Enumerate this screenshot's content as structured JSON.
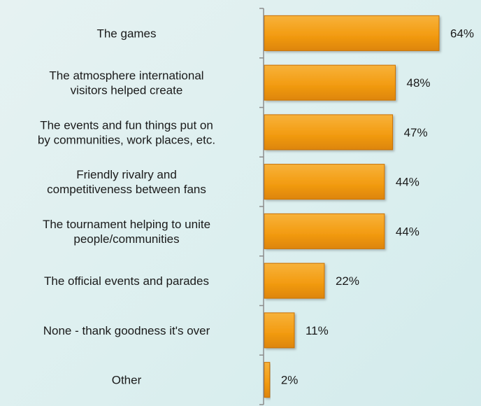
{
  "chart_data": {
    "type": "bar",
    "orientation": "horizontal",
    "title": "",
    "xlabel": "",
    "ylabel": "",
    "categories": [
      [
        "The games"
      ],
      [
        "The atmosphere international",
        "visitors helped create"
      ],
      [
        "The events and fun things put on",
        "by communities, work places, etc."
      ],
      [
        "Friendly rivalry and",
        "competitiveness between fans"
      ],
      [
        "The tournament helping to unite",
        "people/communities"
      ],
      [
        "The official events and parades"
      ],
      [
        "None - thank goodness it's over"
      ],
      [
        "Other"
      ]
    ],
    "values": [
      64,
      48,
      47,
      44,
      44,
      22,
      11,
      2
    ],
    "value_labels": [
      "64%",
      "48%",
      "47%",
      "44%",
      "44%",
      "22%",
      "11%",
      "2%"
    ],
    "xlim": [
      0,
      64
    ],
    "grid": false,
    "legend": "none",
    "colors": {
      "bar": "#f39c12",
      "bar_dark": "#c96f06",
      "axis": "#8c8c8c"
    }
  }
}
